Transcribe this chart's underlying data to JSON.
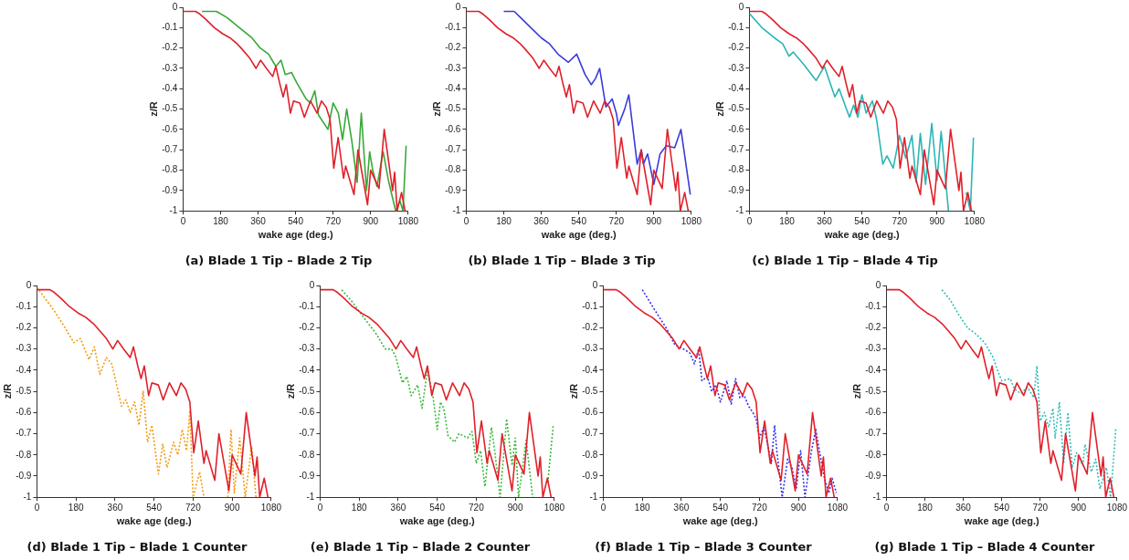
{
  "chart_data": [
    {
      "type": "line",
      "title": "(a) Blade 1 Tip – Blade 2 Tip",
      "xlabel": "wake age (deg.)",
      "ylabel": "z/R",
      "xlim": [
        0,
        1080
      ],
      "xticks": [
        0,
        180,
        360,
        540,
        720,
        900,
        1080
      ],
      "ylim": [
        -1,
        0
      ],
      "yticks": [
        -1,
        -0.9,
        -0.8,
        -0.7,
        -0.6,
        -0.5,
        -0.4,
        -0.3,
        -0.2,
        -0.1,
        0
      ],
      "series": [
        {
          "color": "#e0202a",
          "x": [
            0,
            60,
            76,
            110,
            150,
            190,
            225,
            260,
            278,
            320,
            350,
            372,
            400,
            430,
            445,
            465,
            480,
            495,
            515,
            530,
            560,
            582,
            611,
            643,
            664,
            686,
            705,
            723,
            744,
            770,
            780,
            820,
            839,
            885,
            900,
            940,
            965,
            1005,
            1015,
            1027,
            1048,
            1065
          ],
          "values": [
            -0.02,
            -0.02,
            -0.03,
            -0.06,
            -0.1,
            -0.13,
            -0.15,
            -0.18,
            -0.2,
            -0.25,
            -0.3,
            -0.26,
            -0.3,
            -0.34,
            -0.29,
            -0.38,
            -0.44,
            -0.38,
            -0.52,
            -0.46,
            -0.47,
            -0.54,
            -0.46,
            -0.52,
            -0.46,
            -0.49,
            -0.55,
            -0.79,
            -0.64,
            -0.84,
            -0.78,
            -0.92,
            -0.7,
            -0.97,
            -0.8,
            -0.89,
            -0.6,
            -0.9,
            -0.81,
            -1,
            -0.91,
            -1
          ]
        },
        {
          "color": "#3aa83a",
          "x": [
            90,
            160,
            210,
            270,
            330,
            370,
            410,
            445,
            470,
            490,
            520,
            545,
            590,
            610,
            632,
            650,
            695,
            720,
            745,
            765,
            785,
            810,
            835,
            855,
            880,
            895,
            910,
            930,
            960,
            985,
            1020,
            1040,
            1055,
            1070
          ],
          "values": [
            -0.02,
            -0.02,
            -0.05,
            -0.1,
            -0.15,
            -0.2,
            -0.23,
            -0.29,
            -0.26,
            -0.33,
            -0.32,
            -0.37,
            -0.45,
            -0.47,
            -0.41,
            -0.53,
            -0.6,
            -0.47,
            -0.52,
            -0.65,
            -0.5,
            -0.66,
            -0.86,
            -0.52,
            -0.9,
            -0.71,
            -0.8,
            -0.88,
            -0.71,
            -0.85,
            -1,
            -0.95,
            -1,
            -0.68
          ]
        }
      ]
    },
    {
      "type": "line",
      "title": "(b) Blade 1 Tip – Blade 3 Tip",
      "xlabel": "wake age (deg.)",
      "ylabel": "z/R",
      "xlim": [
        0,
        1080
      ],
      "xticks": [
        0,
        180,
        360,
        540,
        720,
        900,
        1080
      ],
      "ylim": [
        -1,
        0
      ],
      "yticks": [
        -1,
        -0.9,
        -0.8,
        -0.7,
        -0.6,
        -0.5,
        -0.4,
        -0.3,
        -0.2,
        -0.1,
        0
      ],
      "series": [
        {
          "color": "#e0202a",
          "x": [
            0,
            60,
            76,
            110,
            150,
            190,
            225,
            260,
            278,
            320,
            350,
            372,
            400,
            430,
            445,
            465,
            480,
            495,
            515,
            530,
            560,
            582,
            611,
            643,
            664,
            686,
            705,
            723,
            744,
            770,
            780,
            820,
            839,
            885,
            900,
            940,
            965,
            1005,
            1015,
            1027,
            1048,
            1065
          ],
          "values": [
            -0.02,
            -0.02,
            -0.03,
            -0.06,
            -0.1,
            -0.13,
            -0.15,
            -0.18,
            -0.2,
            -0.25,
            -0.3,
            -0.26,
            -0.3,
            -0.34,
            -0.29,
            -0.38,
            -0.44,
            -0.38,
            -0.52,
            -0.46,
            -0.47,
            -0.54,
            -0.46,
            -0.52,
            -0.46,
            -0.49,
            -0.55,
            -0.79,
            -0.64,
            -0.84,
            -0.78,
            -0.92,
            -0.7,
            -0.97,
            -0.8,
            -0.89,
            -0.6,
            -0.9,
            -0.81,
            -1,
            -0.91,
            -1
          ]
        },
        {
          "color": "#3b3bdc",
          "x": [
            180,
            230,
            260,
            310,
            360,
            400,
            440,
            490,
            530,
            570,
            600,
            620,
            640,
            670,
            700,
            720,
            730,
            760,
            780,
            800,
            820,
            840,
            850,
            870,
            900,
            930,
            960,
            1000,
            1030,
            1075
          ],
          "values": [
            -0.02,
            -0.02,
            -0.05,
            -0.1,
            -0.15,
            -0.18,
            -0.23,
            -0.27,
            -0.23,
            -0.33,
            -0.38,
            -0.35,
            -0.3,
            -0.49,
            -0.45,
            -0.52,
            -0.58,
            -0.5,
            -0.43,
            -0.6,
            -0.77,
            -0.7,
            -0.77,
            -0.72,
            -0.87,
            -0.72,
            -0.68,
            -0.69,
            -0.6,
            -0.92
          ]
        }
      ]
    },
    {
      "type": "line",
      "title": "(c) Blade 1 Tip – Blade 4 Tip",
      "xlabel": "wake age (deg.)",
      "ylabel": "z/R",
      "xlim": [
        0,
        1080
      ],
      "xticks": [
        0,
        180,
        360,
        540,
        720,
        900,
        1080
      ],
      "ylim": [
        -1,
        0
      ],
      "yticks": [
        -1,
        -0.9,
        -0.8,
        -0.7,
        -0.6,
        -0.5,
        -0.4,
        -0.3,
        -0.2,
        -0.1,
        0
      ],
      "series": [
        {
          "color": "#e0202a",
          "x": [
            0,
            60,
            76,
            110,
            150,
            190,
            225,
            260,
            278,
            320,
            350,
            372,
            400,
            430,
            445,
            465,
            480,
            495,
            515,
            530,
            560,
            582,
            611,
            643,
            664,
            686,
            705,
            723,
            744,
            770,
            780,
            820,
            839,
            885,
            900,
            940,
            965,
            1005,
            1015,
            1027,
            1048,
            1065
          ],
          "values": [
            -0.02,
            -0.02,
            -0.03,
            -0.06,
            -0.1,
            -0.13,
            -0.15,
            -0.18,
            -0.2,
            -0.25,
            -0.3,
            -0.26,
            -0.3,
            -0.34,
            -0.29,
            -0.38,
            -0.44,
            -0.38,
            -0.52,
            -0.46,
            -0.47,
            -0.54,
            -0.46,
            -0.52,
            -0.46,
            -0.49,
            -0.55,
            -0.79,
            -0.64,
            -0.84,
            -0.78,
            -0.92,
            -0.7,
            -0.97,
            -0.8,
            -0.89,
            -0.6,
            -0.9,
            -0.81,
            -1,
            -0.91,
            -1
          ]
        },
        {
          "color": "#2bb5b5",
          "x": [
            0,
            60,
            120,
            160,
            190,
            210,
            260,
            320,
            360,
            410,
            430,
            480,
            500,
            520,
            540,
            560,
            590,
            610,
            640,
            660,
            690,
            720,
            750,
            780,
            800,
            820,
            845,
            875,
            900,
            920,
            955,
            990,
            1030,
            1040,
            1060,
            1075
          ],
          "values": [
            -0.03,
            -0.1,
            -0.15,
            -0.18,
            -0.24,
            -0.22,
            -0.28,
            -0.36,
            -0.29,
            -0.44,
            -0.4,
            -0.54,
            -0.48,
            -0.54,
            -0.43,
            -0.52,
            -0.46,
            -0.55,
            -0.77,
            -0.73,
            -0.79,
            -0.63,
            -0.74,
            -0.63,
            -0.86,
            -0.62,
            -0.87,
            -0.57,
            -0.85,
            -0.61,
            -1,
            null,
            null,
            -0.91,
            -1,
            -0.64
          ]
        }
      ]
    },
    {
      "type": "line",
      "title": "(d) Blade 1 Tip – Blade 1 Counter",
      "xlabel": "wake age (deg.)",
      "ylabel": "z/R",
      "xlim": [
        0,
        1080
      ],
      "xticks": [
        0,
        180,
        360,
        540,
        720,
        900,
        1080
      ],
      "ylim": [
        -1,
        0
      ],
      "yticks": [
        -1,
        -0.9,
        -0.8,
        -0.7,
        -0.6,
        -0.5,
        -0.4,
        -0.3,
        -0.2,
        -0.1,
        0
      ],
      "series": [
        {
          "color": "#e0202a",
          "x": [
            0,
            60,
            76,
            110,
            150,
            190,
            225,
            260,
            278,
            320,
            350,
            372,
            400,
            430,
            445,
            465,
            480,
            495,
            515,
            530,
            560,
            582,
            611,
            643,
            664,
            686,
            705,
            723,
            744,
            770,
            780,
            820,
            839,
            885,
            900,
            940,
            965,
            1005,
            1015,
            1027,
            1048,
            1065
          ],
          "values": [
            -0.02,
            -0.02,
            -0.03,
            -0.06,
            -0.1,
            -0.13,
            -0.15,
            -0.18,
            -0.2,
            -0.25,
            -0.3,
            -0.26,
            -0.3,
            -0.34,
            -0.29,
            -0.38,
            -0.44,
            -0.38,
            -0.52,
            -0.46,
            -0.47,
            -0.54,
            -0.46,
            -0.52,
            -0.46,
            -0.49,
            -0.55,
            -0.79,
            -0.64,
            -0.84,
            -0.78,
            -0.92,
            -0.7,
            -0.97,
            -0.8,
            -0.89,
            -0.6,
            -0.9,
            -0.81,
            -1,
            -0.91,
            -1
          ]
        },
        {
          "color": "#f39c12",
          "line_style": "dotted",
          "x": [
            0,
            30,
            80,
            130,
            170,
            200,
            240,
            265,
            290,
            320,
            345,
            370,
            390,
            410,
            430,
            450,
            470,
            490,
            510,
            530,
            560,
            580,
            600,
            630,
            650,
            670,
            690,
            705,
            720,
            750,
            770,
            820,
            880,
            895,
            910,
            935,
            960,
            990,
            1010
          ],
          "values": [
            -0.01,
            -0.05,
            -0.12,
            -0.2,
            -0.27,
            -0.25,
            -0.35,
            -0.29,
            -0.42,
            -0.34,
            -0.37,
            -0.48,
            -0.57,
            -0.54,
            -0.6,
            -0.55,
            -0.66,
            -0.5,
            -0.74,
            -0.66,
            -0.89,
            -0.75,
            -0.86,
            -0.74,
            -0.8,
            -0.68,
            -0.78,
            -0.59,
            -1,
            -0.88,
            -1,
            null,
            -1,
            -0.68,
            -0.98,
            -0.72,
            -1,
            -0.76,
            -1
          ]
        }
      ]
    },
    {
      "type": "line",
      "title": "(e) Blade 1 Tip – Blade 2 Counter",
      "xlabel": "wake age (deg.)",
      "ylabel": "z/R",
      "xlim": [
        0,
        1080
      ],
      "xticks": [
        0,
        180,
        360,
        540,
        720,
        900,
        1080
      ],
      "ylim": [
        -1,
        0
      ],
      "yticks": [
        -1,
        -0.9,
        -0.8,
        -0.7,
        -0.6,
        -0.5,
        -0.4,
        -0.3,
        -0.2,
        -0.1,
        0
      ],
      "series": [
        {
          "color": "#e0202a",
          "x": [
            0,
            60,
            76,
            110,
            150,
            190,
            225,
            260,
            278,
            320,
            350,
            372,
            400,
            430,
            445,
            465,
            480,
            495,
            515,
            530,
            560,
            582,
            611,
            643,
            664,
            686,
            705,
            723,
            744,
            770,
            780,
            820,
            839,
            885,
            900,
            940,
            965,
            1005,
            1015,
            1027,
            1048,
            1065
          ],
          "values": [
            -0.02,
            -0.02,
            -0.03,
            -0.06,
            -0.1,
            -0.13,
            -0.15,
            -0.18,
            -0.2,
            -0.25,
            -0.3,
            -0.26,
            -0.3,
            -0.34,
            -0.29,
            -0.38,
            -0.44,
            -0.38,
            -0.52,
            -0.46,
            -0.47,
            -0.54,
            -0.46,
            -0.52,
            -0.46,
            -0.49,
            -0.55,
            -0.79,
            -0.64,
            -0.84,
            -0.78,
            -0.92,
            -0.7,
            -0.97,
            -0.8,
            -0.89,
            -0.6,
            -0.9,
            -0.81,
            -1,
            -0.91,
            -1
          ]
        },
        {
          "color": "#3cb83c",
          "line_style": "dotted",
          "x": [
            100,
            150,
            200,
            260,
            300,
            330,
            350,
            380,
            400,
            420,
            450,
            470,
            495,
            520,
            540,
            555,
            570,
            590,
            620,
            640,
            680,
            700,
            720,
            740,
            760,
            790,
            805,
            830,
            860,
            885,
            900,
            915,
            950,
            980,
            1010,
            1050,
            1075
          ],
          "values": [
            -0.02,
            -0.08,
            -0.15,
            -0.23,
            -0.3,
            -0.3,
            -0.34,
            -0.46,
            -0.43,
            -0.52,
            -0.47,
            -0.58,
            -0.4,
            -0.52,
            -0.68,
            -0.55,
            -0.58,
            -0.71,
            -0.74,
            -0.7,
            -0.72,
            -0.69,
            -0.84,
            -0.78,
            -0.95,
            -0.67,
            -0.78,
            -1,
            -0.63,
            -0.85,
            -0.72,
            -1,
            -0.73,
            -1,
            null,
            -0.93,
            -0.66
          ]
        }
      ]
    },
    {
      "type": "line",
      "title": "(f) Blade 1 Tip – Blade 3 Counter",
      "xlabel": "wake age (deg.)",
      "ylabel": "z/R",
      "xlim": [
        0,
        1080
      ],
      "xticks": [
        0,
        180,
        360,
        540,
        720,
        900,
        1080
      ],
      "ylim": [
        -1,
        0
      ],
      "yticks": [
        -1,
        -0.9,
        -0.8,
        -0.7,
        -0.6,
        -0.5,
        -0.4,
        -0.3,
        -0.2,
        -0.1,
        0
      ],
      "series": [
        {
          "color": "#e0202a",
          "x": [
            0,
            60,
            76,
            110,
            150,
            190,
            225,
            260,
            278,
            320,
            350,
            372,
            400,
            430,
            445,
            465,
            480,
            495,
            515,
            530,
            560,
            582,
            611,
            643,
            664,
            686,
            705,
            723,
            744,
            770,
            780,
            820,
            839,
            885,
            900,
            940,
            965,
            1005,
            1015,
            1027,
            1048,
            1065
          ],
          "values": [
            -0.02,
            -0.02,
            -0.03,
            -0.06,
            -0.1,
            -0.13,
            -0.15,
            -0.18,
            -0.2,
            -0.25,
            -0.3,
            -0.26,
            -0.3,
            -0.34,
            -0.29,
            -0.38,
            -0.44,
            -0.38,
            -0.52,
            -0.46,
            -0.47,
            -0.54,
            -0.46,
            -0.52,
            -0.46,
            -0.49,
            -0.55,
            -0.79,
            -0.64,
            -0.84,
            -0.78,
            -0.92,
            -0.7,
            -0.97,
            -0.8,
            -0.89,
            -0.6,
            -0.9,
            -0.81,
            -1,
            -0.91,
            -1
          ]
        },
        {
          "color": "#3333ee",
          "line_style": "dotted",
          "x": [
            180,
            240,
            290,
            330,
            370,
            400,
            420,
            440,
            455,
            480,
            500,
            520,
            540,
            570,
            590,
            610,
            630,
            650,
            670,
            690,
            705,
            720,
            740,
            760,
            775,
            790,
            800,
            825,
            850,
            870,
            890,
            910,
            930,
            960,
            980,
            1000,
            1020,
            1040,
            1055,
            1075
          ],
          "values": [
            -0.02,
            -0.12,
            -0.2,
            -0.28,
            -0.3,
            -0.32,
            -0.37,
            -0.3,
            -0.45,
            -0.43,
            -0.5,
            -0.47,
            -0.55,
            -0.45,
            -0.56,
            -0.44,
            -0.53,
            -0.52,
            -0.57,
            -0.6,
            -0.63,
            -0.72,
            -0.67,
            -0.76,
            -0.84,
            -0.66,
            -0.78,
            -1,
            -0.82,
            -0.86,
            -0.96,
            -0.78,
            -1,
            -0.78,
            -0.68,
            -0.8,
            -0.91,
            -0.98,
            -0.91,
            -0.98
          ]
        }
      ]
    },
    {
      "type": "line",
      "title": "(g) Blade 1 Tip – Blade 4 Counter",
      "xlabel": "wake age (deg.)",
      "ylabel": "z/R",
      "xlim": [
        0,
        1080
      ],
      "xticks": [
        0,
        180,
        360,
        540,
        720,
        900,
        1080
      ],
      "ylim": [
        -1,
        0
      ],
      "yticks": [
        -1,
        -0.9,
        -0.8,
        -0.7,
        -0.6,
        -0.5,
        -0.4,
        -0.3,
        -0.2,
        -0.1,
        0
      ],
      "series": [
        {
          "color": "#e0202a",
          "x": [
            0,
            60,
            76,
            110,
            150,
            190,
            225,
            260,
            278,
            320,
            350,
            372,
            400,
            430,
            445,
            465,
            480,
            495,
            515,
            530,
            560,
            582,
            611,
            643,
            664,
            686,
            705,
            723,
            744,
            770,
            780,
            820,
            839,
            885,
            900,
            940,
            965,
            1005,
            1015,
            1027,
            1048,
            1065
          ],
          "values": [
            -0.02,
            -0.02,
            -0.03,
            -0.06,
            -0.1,
            -0.13,
            -0.15,
            -0.18,
            -0.2,
            -0.25,
            -0.3,
            -0.26,
            -0.3,
            -0.34,
            -0.29,
            -0.38,
            -0.44,
            -0.38,
            -0.52,
            -0.46,
            -0.47,
            -0.54,
            -0.46,
            -0.52,
            -0.46,
            -0.49,
            -0.55,
            -0.79,
            -0.64,
            -0.84,
            -0.78,
            -0.92,
            -0.7,
            -0.97,
            -0.8,
            -0.89,
            -0.6,
            -0.9,
            -0.81,
            -1,
            -0.91,
            -1
          ]
        },
        {
          "color": "#33bbbb",
          "line_style": "dotted",
          "x": [
            260,
            300,
            340,
            380,
            420,
            460,
            500,
            520,
            540,
            580,
            600,
            630,
            660,
            690,
            705,
            720,
            740,
            760,
            780,
            790,
            810,
            830,
            850,
            870,
            890,
            920,
            930,
            960,
            980,
            1000,
            1030,
            1050,
            1075
          ],
          "values": [
            -0.02,
            -0.07,
            -0.14,
            -0.2,
            -0.23,
            -0.27,
            -0.34,
            -0.4,
            -0.45,
            -0.44,
            -0.49,
            -0.51,
            -0.48,
            -0.53,
            -0.38,
            -0.64,
            -0.6,
            -0.67,
            -0.58,
            -0.72,
            -0.55,
            -0.84,
            -0.6,
            -0.86,
            -0.79,
            -0.85,
            -0.75,
            -0.88,
            -0.82,
            -0.96,
            -0.86,
            -1,
            -0.67
          ]
        }
      ]
    }
  ]
}
